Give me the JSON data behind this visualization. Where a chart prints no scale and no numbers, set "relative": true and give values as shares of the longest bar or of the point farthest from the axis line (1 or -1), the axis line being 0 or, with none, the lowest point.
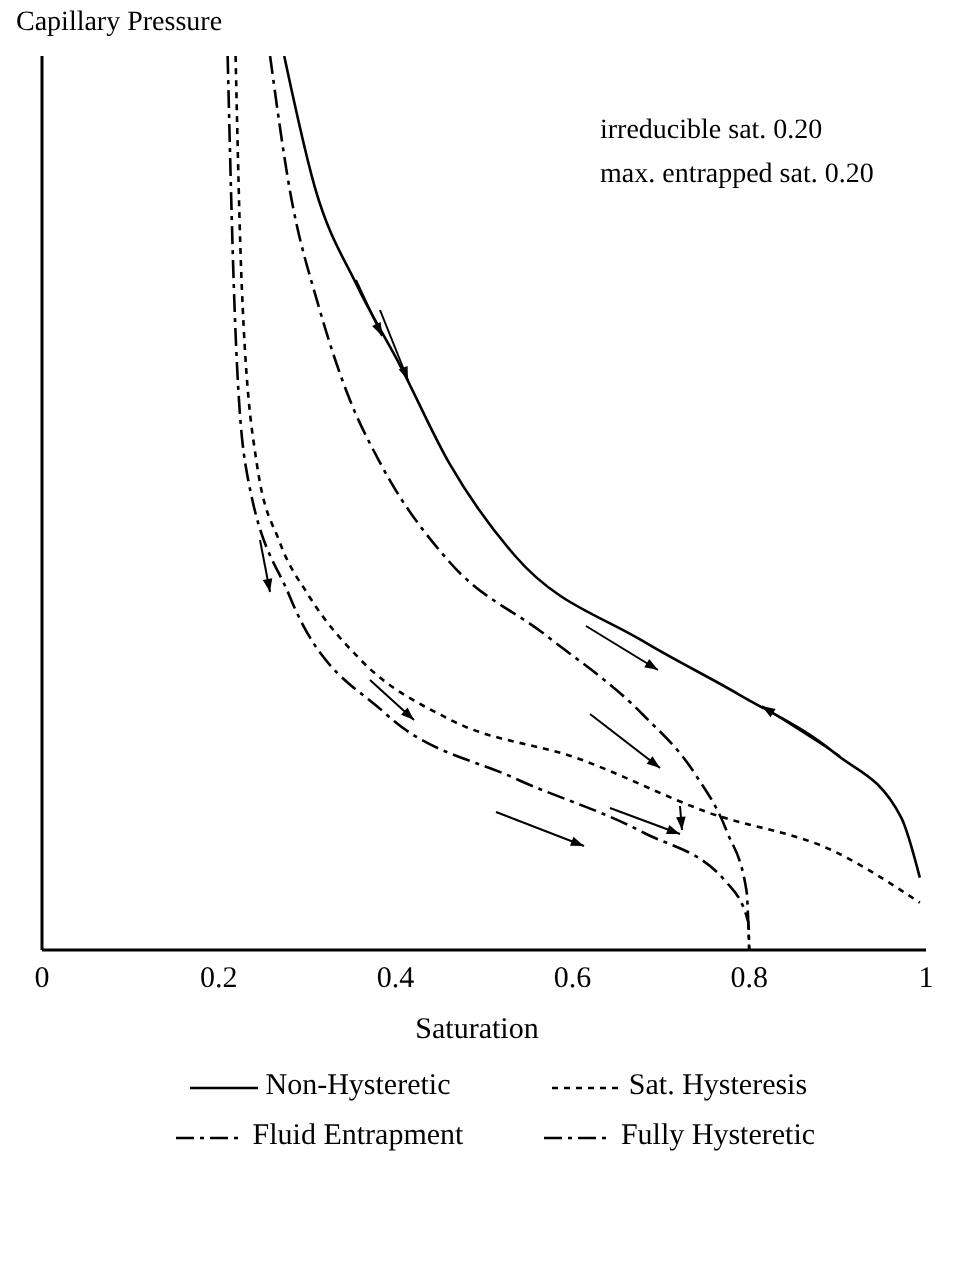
{
  "chart_data": {
    "type": "line",
    "relative": true,
    "ylabel": "Capillary Pressure",
    "xlabel": "Saturation",
    "xlim": [
      0,
      1
    ],
    "xticks": [
      0,
      0.2,
      0.4,
      0.6,
      0.8,
      1
    ],
    "annotations": [
      "irreducible sat. 0.20",
      "max. entrapped sat. 0.20"
    ],
    "legend": "bottom",
    "series": [
      {
        "name": "Non-Hysteretic",
        "color": "#000000",
        "line_style": "solid",
        "x": [
          0.274,
          0.309,
          0.357,
          0.405,
          0.461,
          0.535,
          0.679,
          0.788,
          0.897,
          0.972,
          0.993
        ],
        "values": [
          1.0,
          0.852,
          0.742,
          0.654,
          0.544,
          0.441,
          0.346,
          0.286,
          0.22,
          0.148,
          0.081
        ]
      },
      {
        "name": "Sat. Hysteresis",
        "color": "#000000",
        "line_style": "dotted",
        "x": [
          0.219,
          0.226,
          0.243,
          0.269,
          0.302,
          0.361,
          0.461,
          0.607,
          0.753,
          0.897,
          0.993
        ],
        "values": [
          1.0,
          0.742,
          0.544,
          0.456,
          0.396,
          0.324,
          0.258,
          0.214,
          0.154,
          0.11,
          0.053
        ]
      },
      {
        "name": "Fluid Entrapment",
        "color": "#000000",
        "line_style": "dashed",
        "x": [
          0.258,
          0.28,
          0.313,
          0.346,
          0.383,
          0.461,
          0.57,
          0.679,
          0.738,
          0.775,
          0.797,
          0.8
        ],
        "values": [
          1.0,
          0.852,
          0.72,
          0.621,
          0.544,
          0.434,
          0.352,
          0.264,
          0.198,
          0.132,
          0.066,
          0.0
        ]
      },
      {
        "name": "Fully Hysteretic",
        "color": "#000000",
        "line_style": "dashed",
        "x": [
          0.21,
          0.217,
          0.23,
          0.28,
          0.389,
          0.535,
          0.679,
          0.775,
          0.799,
          0.8
        ],
        "values": [
          1.0,
          0.742,
          0.544,
          0.396,
          0.264,
          0.192,
          0.132,
          0.075,
          0.031,
          0.0
        ]
      }
    ]
  }
}
